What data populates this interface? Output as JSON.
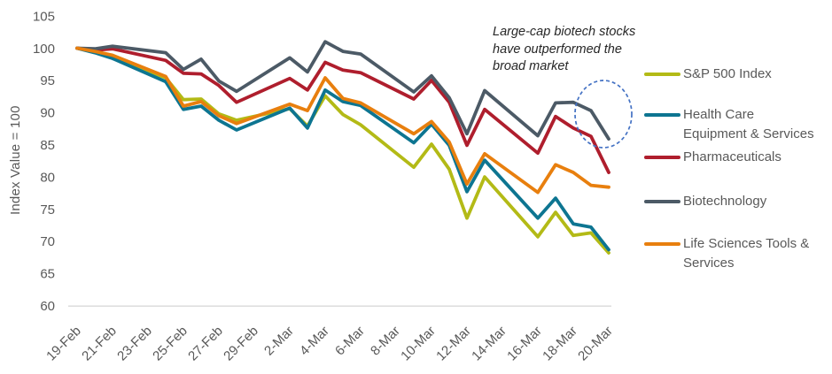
{
  "chart_data": {
    "type": "line",
    "title": "",
    "y_axis_title": "Index Value = 100",
    "ylim": [
      60,
      105
    ],
    "y_ticks": [
      105,
      100,
      95,
      90,
      85,
      80,
      75,
      70,
      65,
      60
    ],
    "x_dates": [
      "19-Feb",
      "20-Feb",
      "21-Feb",
      "24-Feb",
      "25-Feb",
      "26-Feb",
      "27-Feb",
      "28-Feb",
      "2-Mar",
      "3-Mar",
      "4-Mar",
      "5-Mar",
      "6-Mar",
      "9-Mar",
      "10-Mar",
      "11-Mar",
      "12-Mar",
      "13-Mar",
      "16-Mar",
      "17-Mar",
      "18-Mar",
      "19-Mar",
      "20-Mar"
    ],
    "x_day_offsets": [
      0,
      1,
      2,
      5,
      6,
      7,
      8,
      9,
      12,
      13,
      14,
      15,
      16,
      19,
      20,
      21,
      22,
      23,
      26,
      27,
      28,
      29,
      30
    ],
    "x_tick_labels": [
      "19-Feb",
      "21-Feb",
      "23-Feb",
      "25-Feb",
      "27-Feb",
      "29-Feb",
      "2-Mar",
      "4-Mar",
      "6-Mar",
      "8-Mar",
      "10-Mar",
      "12-Mar",
      "14-Mar",
      "16-Mar",
      "18-Mar",
      "20-Mar"
    ],
    "x_tick_day_offsets": [
      0,
      2,
      4,
      6,
      8,
      10,
      12,
      14,
      16,
      18,
      20,
      22,
      24,
      26,
      28,
      30
    ],
    "grid": false,
    "legend_position": "right",
    "series": [
      {
        "name": "S&P 500 Index",
        "color": "#b3ba16",
        "values": [
          100,
          99.5,
          98.6,
          95.4,
          92.0,
          92.1,
          89.8,
          88.8,
          90.6,
          87.9,
          92.6,
          89.7,
          88.1,
          81.5,
          85.1,
          81.2,
          73.6,
          80.0,
          70.7,
          74.5,
          70.9,
          71.3,
          68.2
        ]
      },
      {
        "name": "Health Care Equipment & Services",
        "color": "#0d7591",
        "values": [
          100,
          99.3,
          98.4,
          94.8,
          90.5,
          91.0,
          88.8,
          87.3,
          90.7,
          87.6,
          93.5,
          91.7,
          91.1,
          85.3,
          88.2,
          84.9,
          77.7,
          82.6,
          73.6,
          76.7,
          72.7,
          72.2,
          68.7
        ]
      },
      {
        "name": "Pharmaceuticals",
        "color": "#af1e2d",
        "values": [
          100,
          99.7,
          99.9,
          98.1,
          96.1,
          96.0,
          94.2,
          91.6,
          95.3,
          93.5,
          97.8,
          96.6,
          96.2,
          92.1,
          95.0,
          91.6,
          84.9,
          90.5,
          83.7,
          89.4,
          87.6,
          86.3,
          80.7
        ]
      },
      {
        "name": "Biotechnology",
        "color": "#4c5a66",
        "values": [
          100,
          99.9,
          100.3,
          99.3,
          96.7,
          98.3,
          94.9,
          93.3,
          98.5,
          96.3,
          101.0,
          99.5,
          99.1,
          93.2,
          95.7,
          92.3,
          86.7,
          93.4,
          86.4,
          91.5,
          91.6,
          90.3,
          85.9
        ]
      },
      {
        "name": "Life Sciences Tools & Services",
        "color": "#e87f0e",
        "values": [
          100,
          99.5,
          98.9,
          95.6,
          91.0,
          91.7,
          89.5,
          88.3,
          91.3,
          90.3,
          95.4,
          92.2,
          91.5,
          86.7,
          88.6,
          85.4,
          78.9,
          83.6,
          77.6,
          81.9,
          80.7,
          78.7,
          78.4
        ]
      }
    ],
    "annotation": "Large-cap biotech stocks have outperformed the broad market",
    "highlight_ellipse_color": "#4472c4",
    "axis_line_color": "#d9d9d9",
    "tick_text_color": "#595959"
  },
  "y_axis": {
    "title": "Index Value = 100"
  },
  "annotation": {
    "lines": [
      "Large-cap biotech stocks",
      "have outperformed the",
      "broad market"
    ]
  },
  "legend": {
    "items": [
      {
        "color": "#b3ba16",
        "lines": [
          "S&P 500 Index"
        ]
      },
      {
        "color": "#0d7591",
        "lines": [
          "Health Care",
          "Equipment & Services"
        ]
      },
      {
        "color": "#af1e2d",
        "lines": [
          "Pharmaceuticals"
        ]
      },
      {
        "color": "#4c5a66",
        "lines": [
          "Biotechnology"
        ]
      },
      {
        "color": "#e87f0e",
        "lines": [
          "Life Sciences Tools &",
          "Services"
        ]
      }
    ]
  }
}
